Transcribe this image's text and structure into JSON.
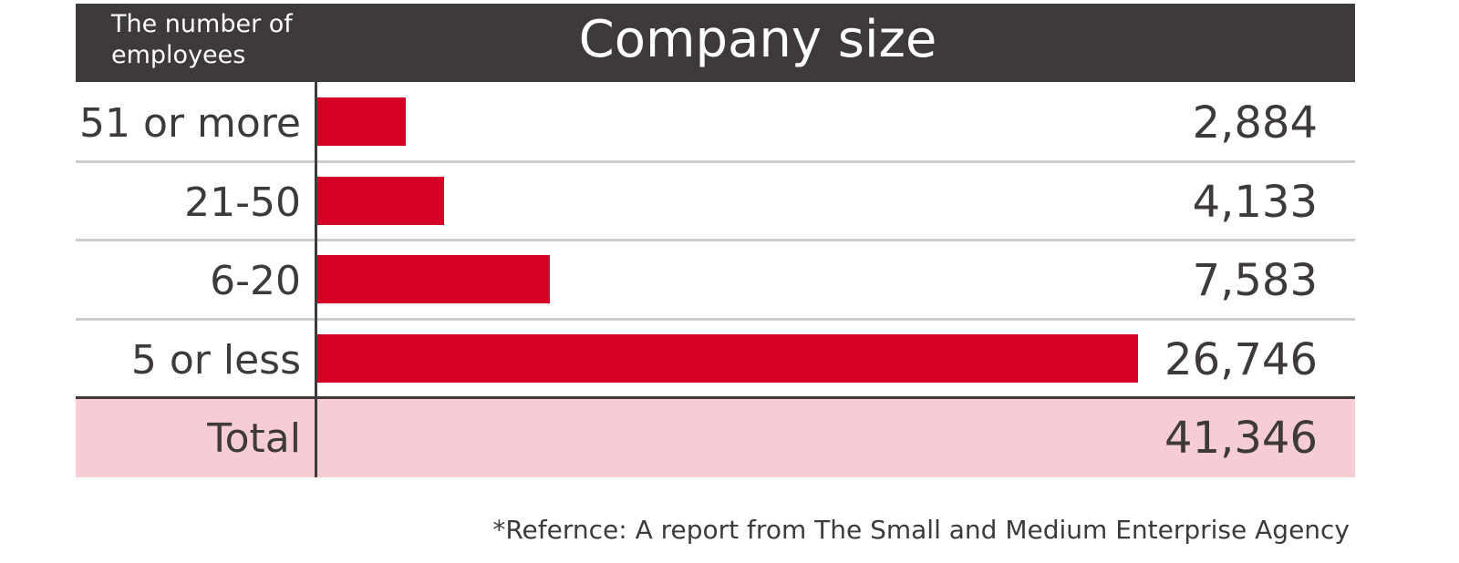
{
  "chart_data": {
    "type": "bar",
    "orientation": "horizontal",
    "title": "Company size",
    "category_header": "The number of employees",
    "categories": [
      "51 or more",
      "21-50",
      "6-20",
      "5 or less"
    ],
    "values": [
      2884,
      4133,
      7583,
      26746
    ],
    "value_labels": [
      "2,884",
      "4,133",
      "7,583",
      "26,746"
    ],
    "color": "#d50025",
    "total": {
      "label": "Total",
      "value": 41346,
      "value_label": "41,346"
    },
    "note": "*Refernce: A report from The Small and Medium Enterprise Agency"
  }
}
